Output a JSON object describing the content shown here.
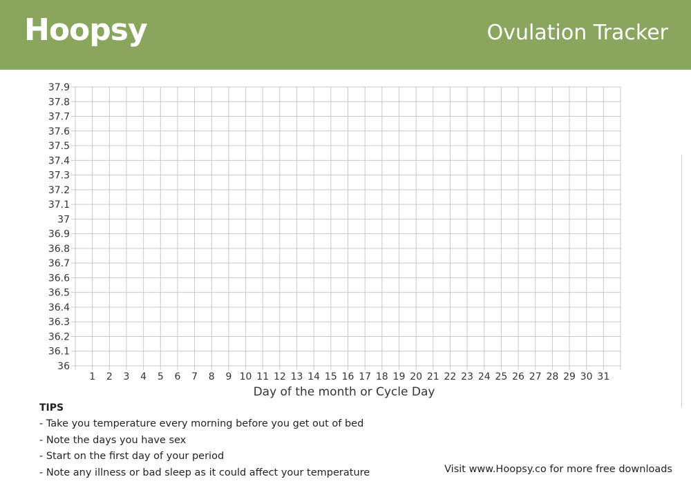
{
  "header": {
    "logo_text": "Hoopsy",
    "title": "Ovulation Tracker",
    "background_color": "#8aa65e"
  },
  "chart_data": {
    "type": "table",
    "title": "",
    "xlabel": "Day of the month or Cycle Day",
    "ylabel": "",
    "x_ticks": [
      "1",
      "2",
      "3",
      "4",
      "5",
      "6",
      "7",
      "8",
      "9",
      "10",
      "11",
      "12",
      "13",
      "14",
      "15",
      "16",
      "17",
      "18",
      "19",
      "20",
      "21",
      "22",
      "23",
      "24",
      "25",
      "26",
      "27",
      "28",
      "29",
      "30",
      "31"
    ],
    "y_ticks": [
      "37.9",
      "37.8",
      "37.7",
      "37.6",
      "37.5",
      "37.4",
      "37.3",
      "37.2",
      "37.1",
      "37",
      "36.9",
      "36.8",
      "36.7",
      "36.6",
      "36.5",
      "36.4",
      "36.3",
      "36.2",
      "36.1",
      "36"
    ],
    "ylim": [
      36,
      37.9
    ],
    "xlim": [
      1,
      31
    ],
    "grid": true,
    "series": []
  },
  "tips": {
    "heading": "TIPS",
    "items": [
      "- Take you temperature every  morning before you get out of bed",
      "- Note the days you have sex",
      "- Start on the first day of your period",
      "- Note any illness or bad sleep as it could affect your temperature"
    ]
  },
  "footer": {
    "visit_text": "Visit www.Hoopsy.co for more free downloads"
  }
}
